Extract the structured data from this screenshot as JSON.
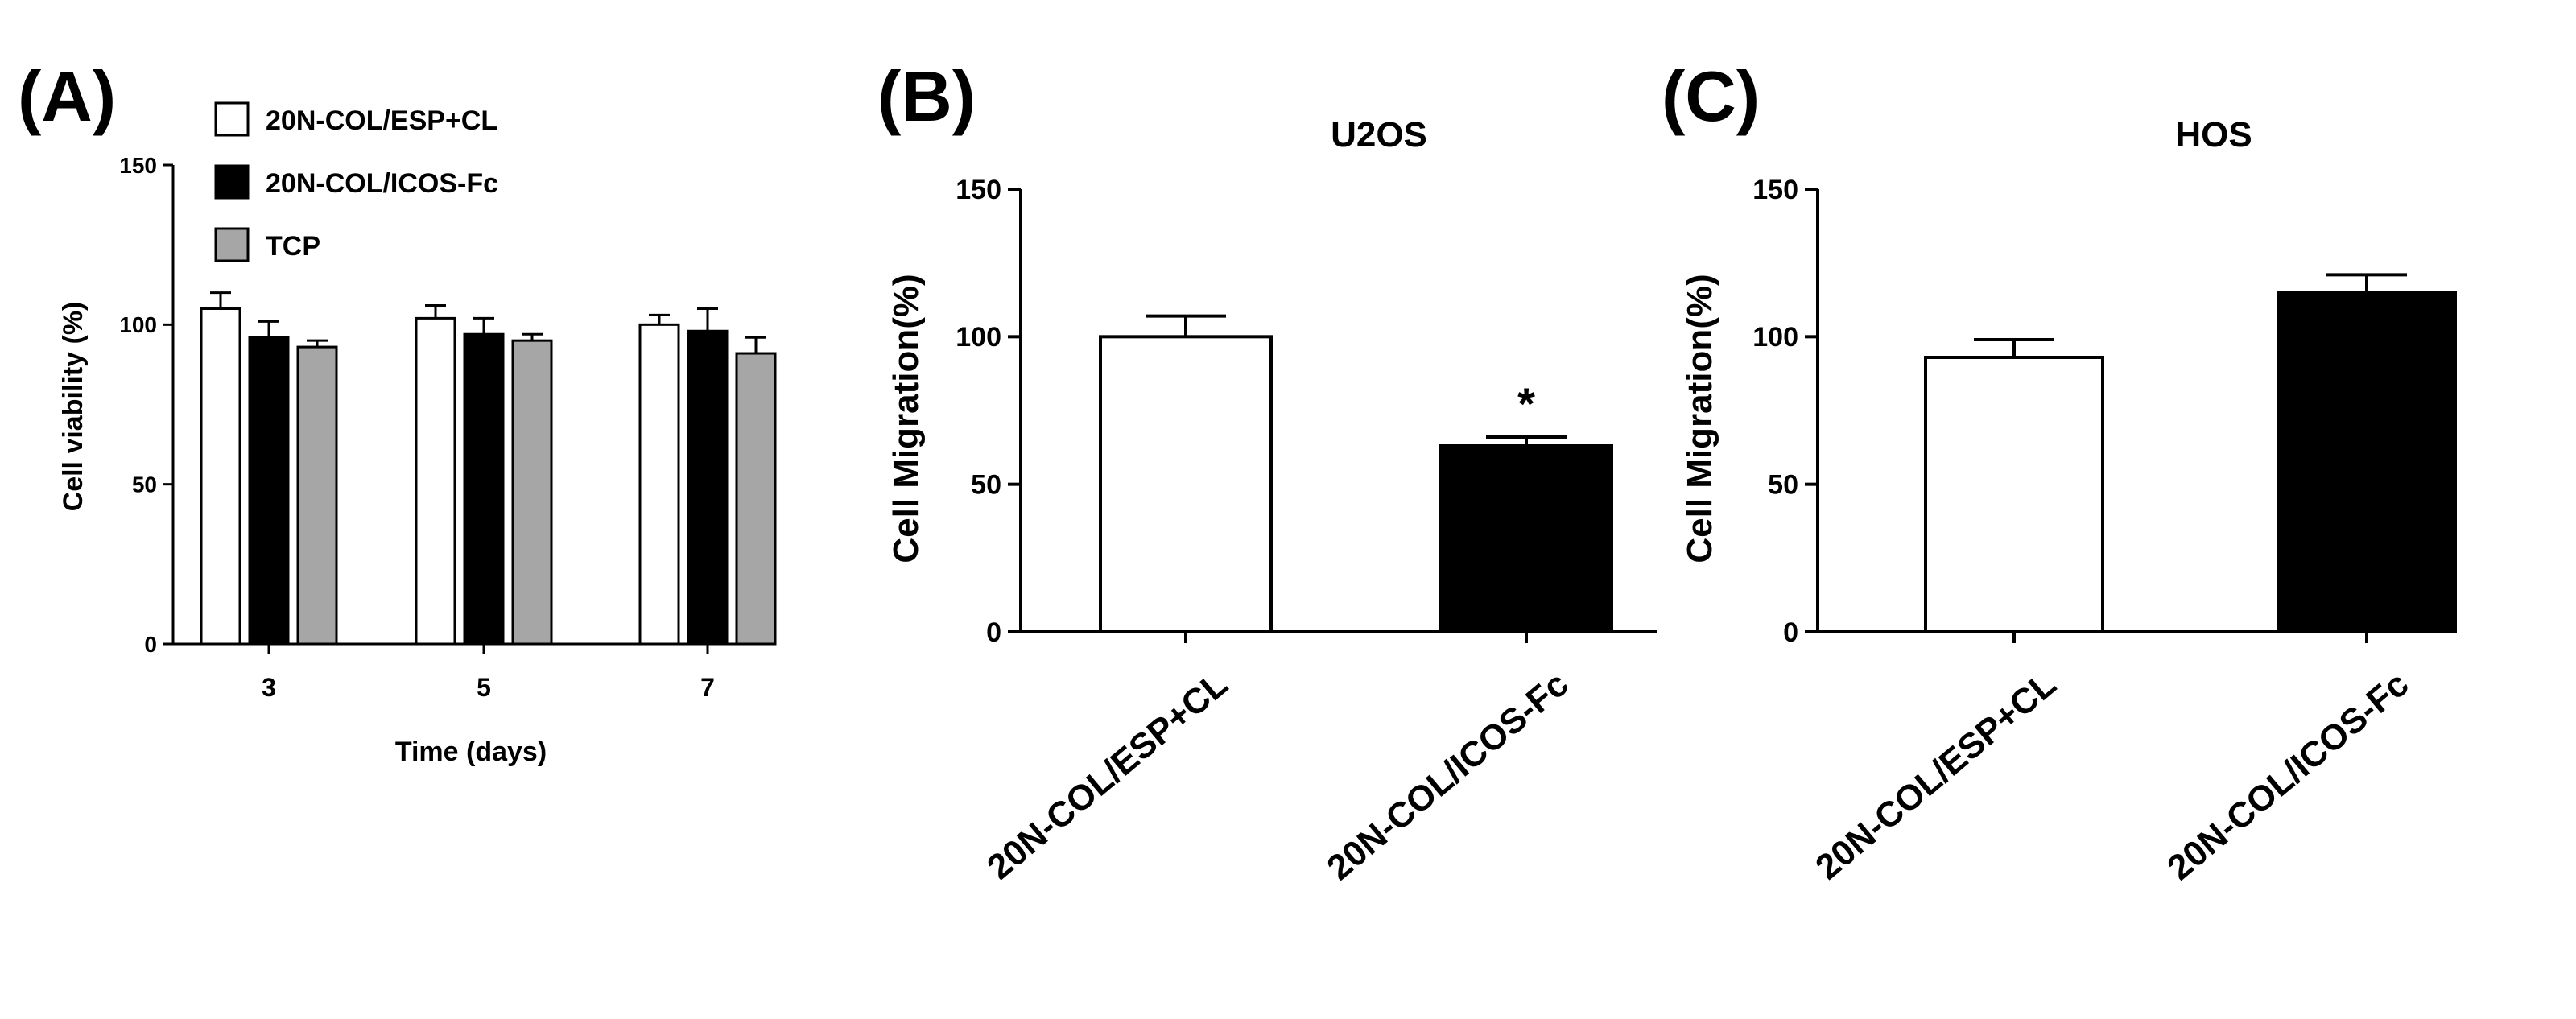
{
  "chart_data": [
    {
      "panel": "(A)",
      "type": "bar",
      "title": "",
      "xlabel": "Time (days)",
      "ylabel": "Cell viability (%)",
      "ylim": [
        0,
        150
      ],
      "yticks": [
        0,
        50,
        100,
        150
      ],
      "categories": [
        "3",
        "5",
        "7"
      ],
      "legend_position": "top-left",
      "series": [
        {
          "name": "20N-COL/ESP+CL",
          "color": "#ffffff",
          "values": [
            105,
            102,
            100
          ],
          "errors": [
            5,
            4,
            3
          ]
        },
        {
          "name": "20N-COL/ICOS-Fc",
          "color": "#000000",
          "values": [
            96,
            97,
            98
          ],
          "errors": [
            5,
            5,
            7
          ]
        },
        {
          "name": "TCP",
          "color": "#a6a6a6",
          "values": [
            93,
            95,
            91
          ],
          "errors": [
            2,
            2,
            5
          ]
        }
      ]
    },
    {
      "panel": "(B)",
      "type": "bar",
      "title": "U2OS",
      "xlabel": "",
      "ylabel": "Cell Migration(%)",
      "ylim": [
        0,
        150
      ],
      "yticks": [
        0,
        50,
        100,
        150
      ],
      "categories": [
        "20N-COL/ESP+CL",
        "20N-COL/ICOS-Fc"
      ],
      "colors": [
        "#ffffff",
        "#000000"
      ],
      "values": [
        100,
        63
      ],
      "errors": [
        7,
        3
      ],
      "annotations": [
        "",
        "*"
      ]
    },
    {
      "panel": "(C)",
      "type": "bar",
      "title": "HOS",
      "xlabel": "",
      "ylabel": "Cell Migration(%)",
      "ylim": [
        0,
        150
      ],
      "yticks": [
        0,
        50,
        100,
        150
      ],
      "categories": [
        "20N-COL/ESP+CL",
        "20N-COL/ICOS-Fc"
      ],
      "colors": [
        "#ffffff",
        "#000000"
      ],
      "values": [
        93,
        115
      ],
      "errors": [
        6,
        6
      ],
      "annotations": [
        "",
        ""
      ]
    }
  ]
}
